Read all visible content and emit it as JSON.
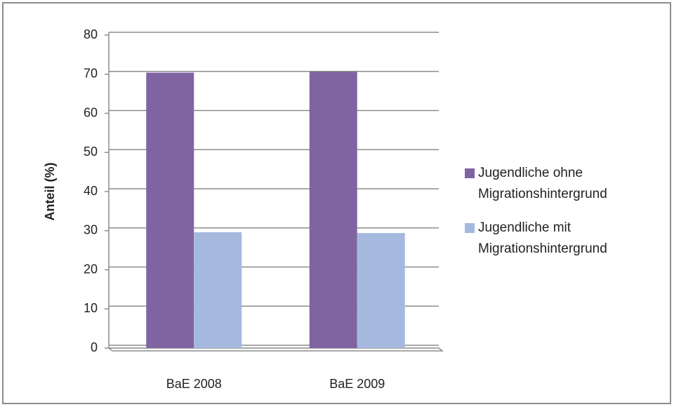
{
  "chart_data": {
    "type": "bar",
    "categories": [
      "BaE 2008",
      "BaE 2009"
    ],
    "series": [
      {
        "name": "Jugendliche ohne Migrationshintergrund",
        "color": "#8064a2",
        "values": [
          70.4,
          70.6
        ]
      },
      {
        "name": "Jugendliche mit Migrationshintergrund",
        "color": "#a5b9de",
        "values": [
          29.6,
          29.4
        ]
      }
    ],
    "y_label": "Anteil (%)",
    "ylim": [
      0,
      80
    ],
    "yticks": [
      0,
      10,
      20,
      30,
      40,
      50,
      60,
      70,
      80
    ],
    "grid": true,
    "legend": "right"
  }
}
